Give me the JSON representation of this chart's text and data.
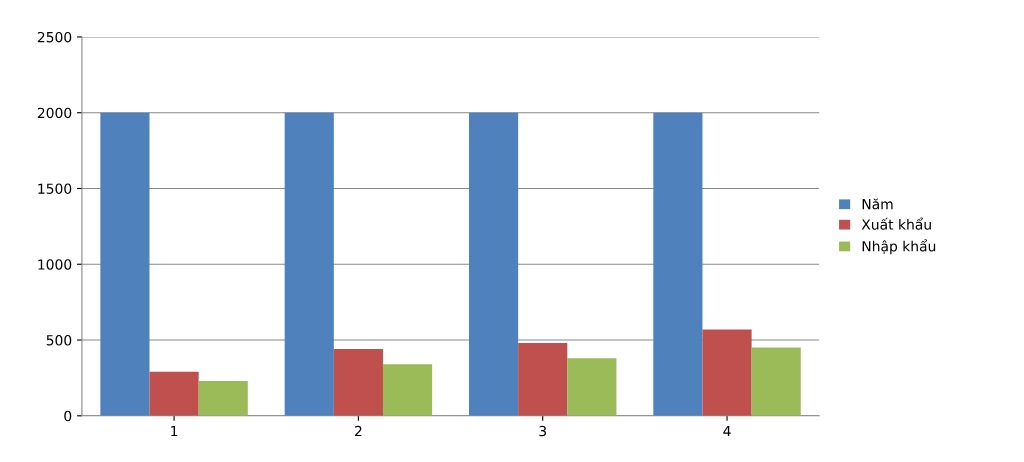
{
  "chart_data": {
    "type": "bar",
    "categories": [
      "1",
      "2",
      "3",
      "4"
    ],
    "series": [
      {
        "name": "Năm",
        "color": "#4f81bd",
        "values": [
          2000,
          2000,
          2000,
          2000
        ]
      },
      {
        "name": "Xuất khẩu",
        "color": "#c0504d",
        "values": [
          290,
          440,
          480,
          570
        ]
      },
      {
        "name": "Nhập khẩu",
        "color": "#9bbb59",
        "values": [
          230,
          340,
          380,
          450
        ]
      }
    ],
    "ylim": [
      0,
      2500
    ],
    "yticks": [
      0,
      500,
      1000,
      1500,
      2000,
      2500
    ],
    "grid": "y",
    "legend": "right"
  }
}
